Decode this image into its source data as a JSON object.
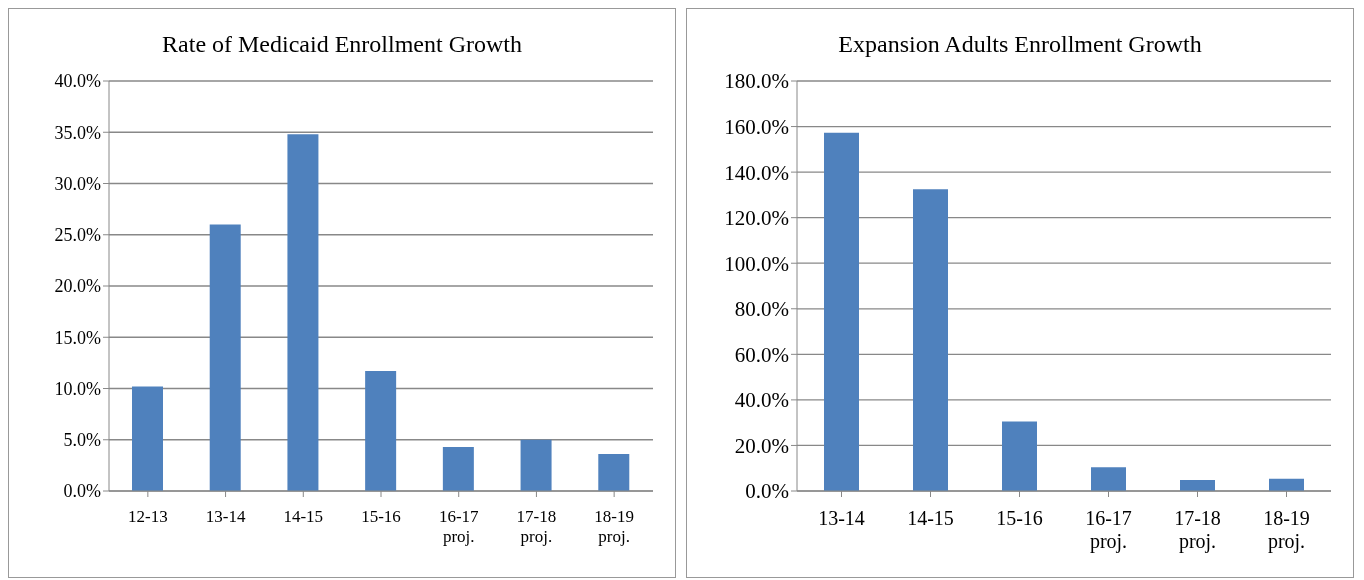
{
  "chart_data": [
    {
      "type": "bar",
      "title": "Rate of Medicaid Enrollment Growth",
      "categories": [
        "12-13",
        "13-14",
        "14-15",
        "15-16",
        "16-17 proj.",
        "17-18 proj.",
        "18-19 proj."
      ],
      "values": [
        10.2,
        26.0,
        34.8,
        11.7,
        4.3,
        5.0,
        3.6
      ],
      "color": "#4f81bd",
      "ylim": [
        0,
        40
      ],
      "yticks": [
        {
          "value": 0,
          "label": "0.0%"
        },
        {
          "value": 5,
          "label": "5.0%"
        },
        {
          "value": 10,
          "label": "10.0%"
        },
        {
          "value": 15,
          "label": "15.0%"
        },
        {
          "value": 20,
          "label": "20.0%"
        },
        {
          "value": 25,
          "label": "25.0%"
        },
        {
          "value": 30,
          "label": "30.0%"
        },
        {
          "value": 35,
          "label": "35.0%"
        },
        {
          "value": 40,
          "label": "40.0%"
        }
      ],
      "grid": "y",
      "legend": false
    },
    {
      "type": "bar",
      "title": "Expansion Adults Enrollment Growth",
      "categories": [
        "13-14",
        "14-15",
        "15-16",
        "16-17 proj.",
        "17-18 proj.",
        "18-19 proj."
      ],
      "values": [
        157.3,
        132.5,
        30.5,
        10.4,
        4.8,
        5.4
      ],
      "color": "#4f81bd",
      "ylim": [
        0,
        180
      ],
      "yticks": [
        {
          "value": 0,
          "label": "0.0%"
        },
        {
          "value": 20,
          "label": "20.0%"
        },
        {
          "value": 40,
          "label": "40.0%"
        },
        {
          "value": 60,
          "label": "60.0%"
        },
        {
          "value": 80,
          "label": "80.0%"
        },
        {
          "value": 100,
          "label": "100.0%"
        },
        {
          "value": 120,
          "label": "120.0%"
        },
        {
          "value": 140,
          "label": "140.0%"
        },
        {
          "value": 160,
          "label": "160.0%"
        },
        {
          "value": 180,
          "label": "180.0%"
        }
      ],
      "grid": "y",
      "legend": false
    }
  ]
}
